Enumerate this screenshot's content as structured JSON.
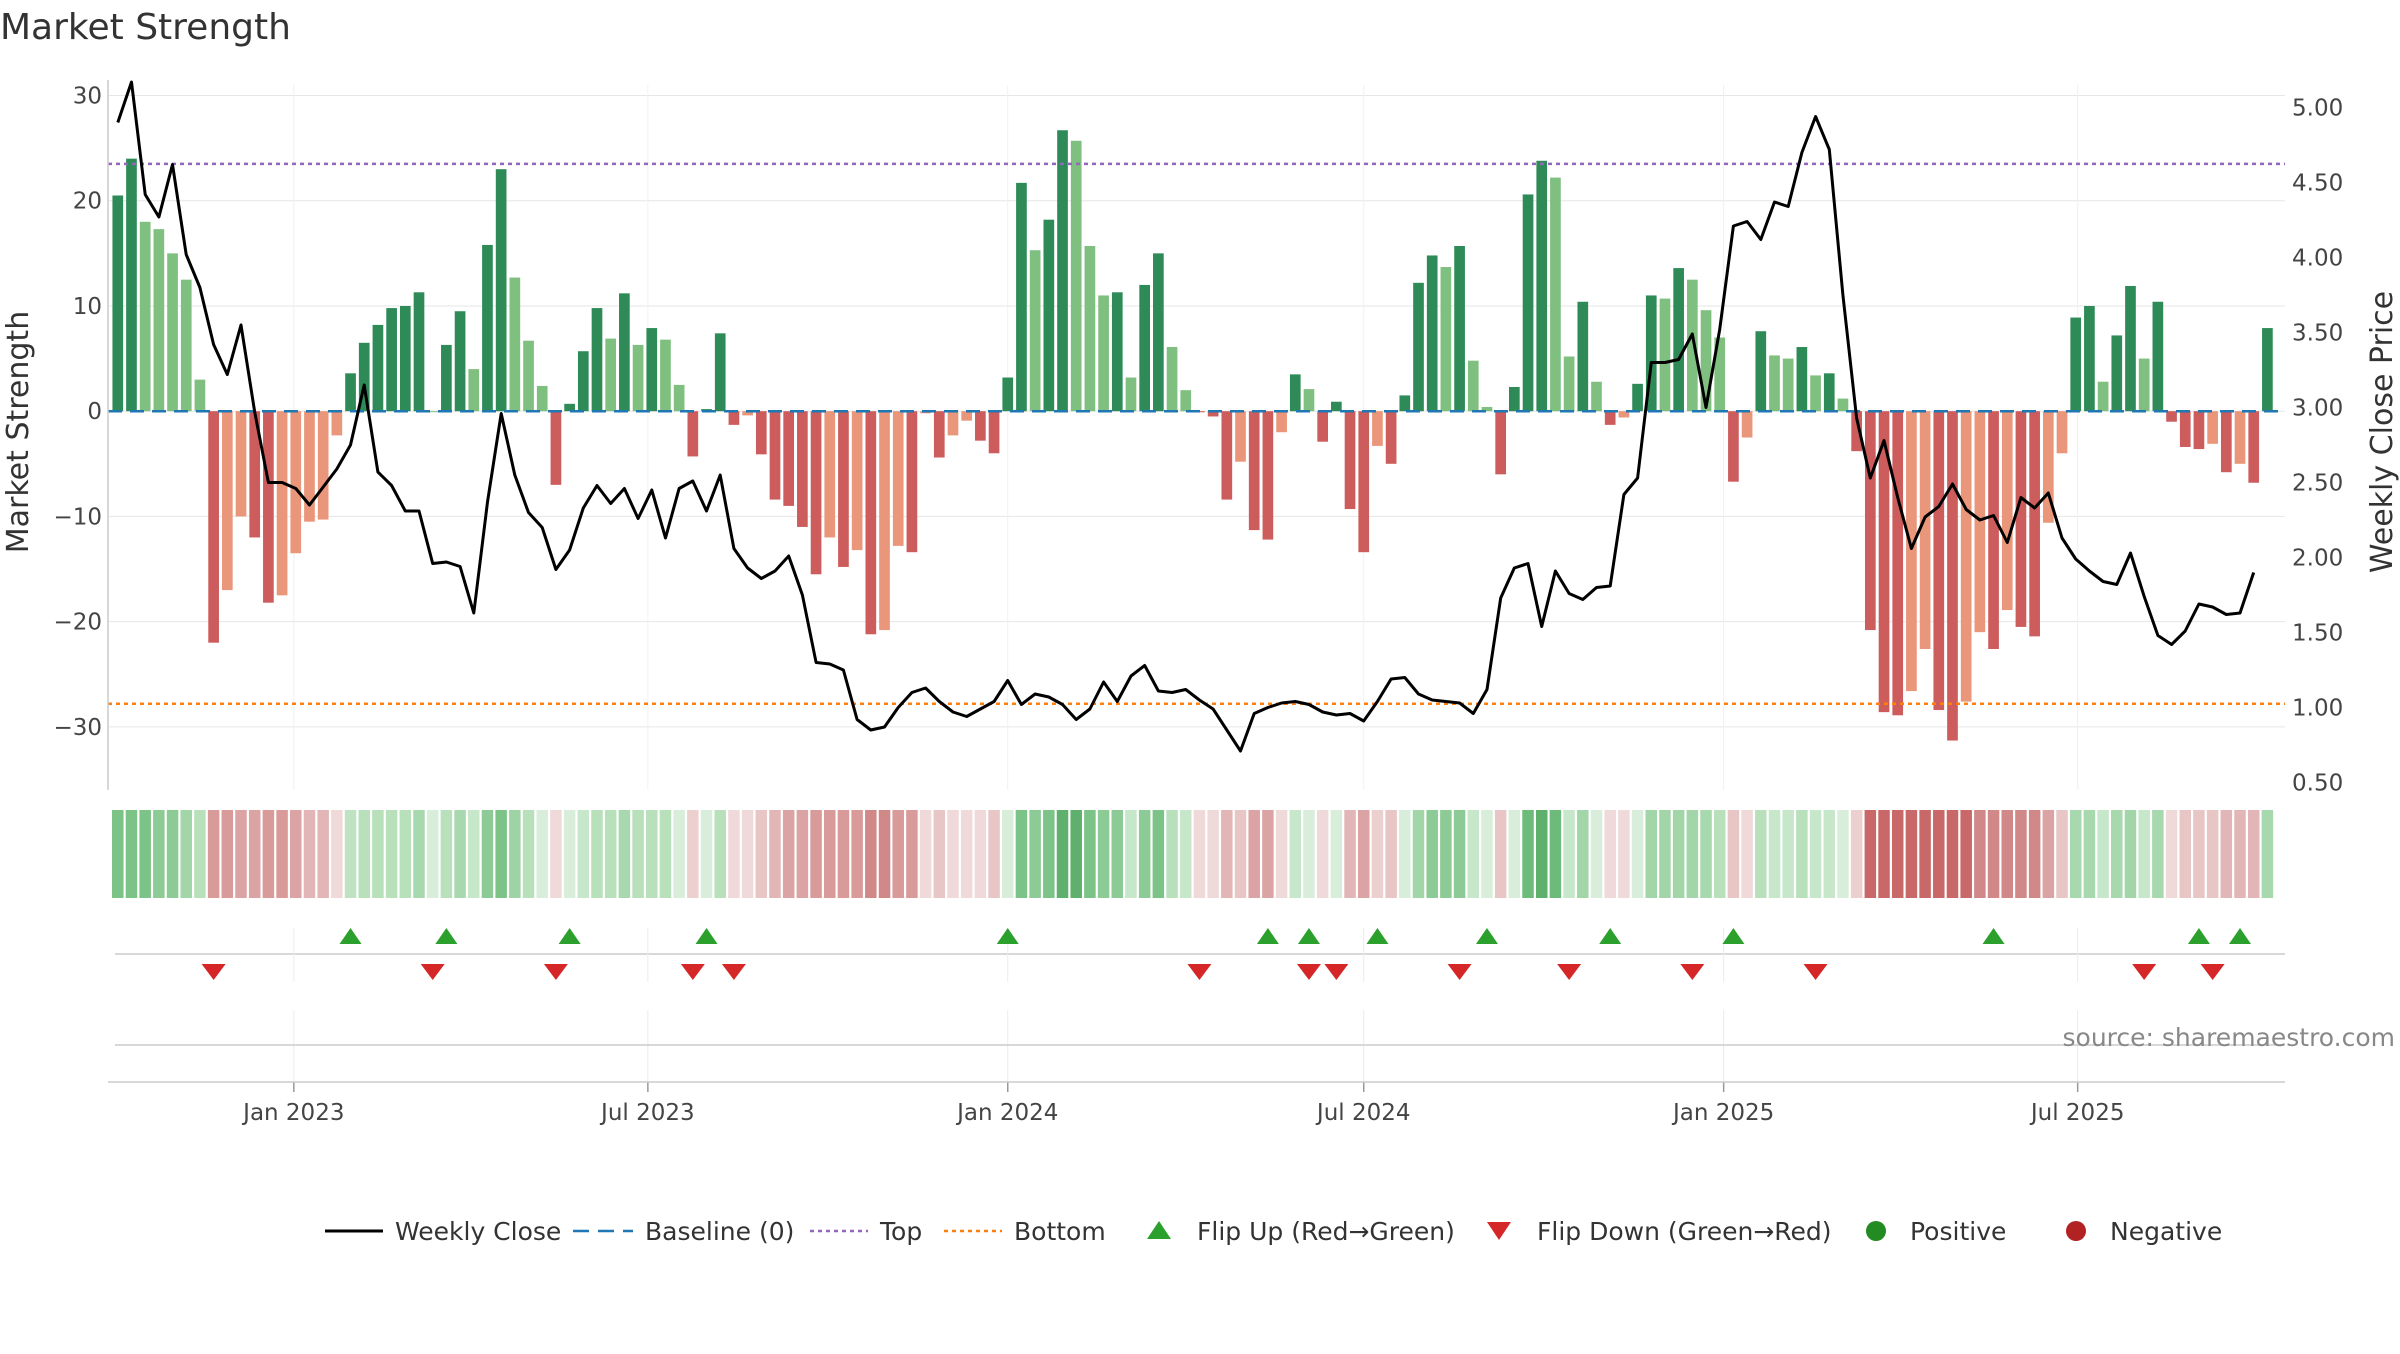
{
  "title": "Market Strength",
  "source": "source: sharemaestro.com",
  "chart_data": {
    "type": "bar",
    "title": "Market Strength",
    "ylabel_left": "Market Strength",
    "ylabel_right": "Weekly Close Price",
    "ylim_left": [
      -36,
      31
    ],
    "ylim_right": [
      0.45,
      5.15
    ],
    "yticks_left": [
      30,
      20,
      10,
      0,
      -10,
      -20,
      -30
    ],
    "ytick_labels_left": [
      "30",
      "20",
      "10",
      "0",
      "−10",
      "−20",
      "−30"
    ],
    "yticks_right": [
      5.0,
      4.5,
      4.0,
      3.5,
      3.0,
      2.5,
      2.0,
      1.5,
      1.0,
      0.5
    ],
    "ytick_labels_right": [
      "5.00",
      "4.50",
      "4.00",
      "3.50",
      "3.00",
      "2.50",
      "2.00",
      "1.50",
      "1.00",
      "0.50"
    ],
    "x_start_date": "2022-10-03",
    "week_days": 7,
    "x_range_dates": [
      "2022-09-28",
      "2025-10-15"
    ],
    "xticks": [
      {
        "label": "Jan 2023",
        "date": "2023-01-01"
      },
      {
        "label": "Jul 2023",
        "date": "2023-07-01"
      },
      {
        "label": "Jan 2024",
        "date": "2024-01-01"
      },
      {
        "label": "Jul 2024",
        "date": "2024-07-01"
      },
      {
        "label": "Jan 2025",
        "date": "2025-01-01"
      },
      {
        "label": "Jul 2025",
        "date": "2025-07-01"
      }
    ],
    "top_line": 23.5,
    "bottom_line": -27.8,
    "grid": true,
    "legend_position": "bottom-center",
    "strength": [
      20.5,
      24,
      18,
      17.3,
      15,
      12.5,
      3,
      -22,
      -17,
      -10,
      -12,
      -18.2,
      -17.5,
      -13.5,
      -10.5,
      -10.3,
      -2.3,
      3.6,
      6.5,
      8.2,
      9.8,
      10,
      11.3,
      0,
      6.3,
      9.5,
      4,
      15.8,
      23,
      12.7,
      6.7,
      2.4,
      -7,
      0.7,
      5.7,
      9.8,
      6.9,
      11.2,
      6.3,
      7.9,
      6.8,
      2.5,
      -4.3,
      0.2,
      7.4,
      -1.3,
      -0.4,
      -4.1,
      -8.4,
      -9,
      -11,
      -15.5,
      -12,
      -14.8,
      -13.2,
      -21.2,
      -20.8,
      -12.8,
      -13.4,
      -0.2,
      -4.4,
      -2.3,
      -0.9,
      -2.8,
      -4,
      3.2,
      21.7,
      15.3,
      18.2,
      26.7,
      25.7,
      15.7,
      11,
      11.3,
      3.2,
      12,
      15,
      6.1,
      2,
      -0.1,
      -0.5,
      -8.4,
      -4.8,
      -11.3,
      -12.2,
      -2,
      3.5,
      2.1,
      -2.9,
      0.9,
      -9.3,
      -13.4,
      -3.3,
      -5,
      1.5,
      12.2,
      14.8,
      13.7,
      15.7,
      4.8,
      0.4,
      -6,
      2.3,
      20.6,
      23.8,
      22.2,
      5.2,
      10.4,
      2.8,
      -1.3,
      -0.6,
      2.6,
      11,
      10.7,
      13.6,
      12.5,
      9.6,
      7,
      -6.7,
      -2.5,
      7.6,
      5.3,
      5,
      6.1,
      3.4,
      3.6,
      1.2,
      -3.8,
      -20.8,
      -28.6,
      -28.9,
      -26.6,
      -22.6,
      -28.4,
      -31.3,
      -27.6,
      -21,
      -22.6,
      -18.9,
      -20.5,
      -21.4,
      -10.6,
      -4,
      8.9,
      10,
      2.8,
      7.2,
      11.9,
      5,
      10.4,
      -1,
      -3.4,
      -3.6,
      -3.1,
      -5.8,
      -5,
      -6.8,
      7.9
    ],
    "close": [
      4.9,
      5.17,
      4.42,
      4.27,
      4.62,
      4.02,
      3.8,
      3.42,
      3.22,
      3.55,
      2.97,
      2.5,
      2.5,
      2.46,
      2.35,
      2.47,
      2.59,
      2.75,
      3.15,
      2.57,
      2.48,
      2.31,
      2.31,
      1.96,
      1.97,
      1.94,
      1.63,
      2.37,
      2.96,
      2.55,
      2.3,
      2.2,
      1.92,
      2.05,
      2.33,
      2.48,
      2.36,
      2.46,
      2.26,
      2.45,
      2.13,
      2.46,
      2.51,
      2.31,
      2.55,
      2.06,
      1.93,
      1.86,
      1.91,
      2.01,
      1.75,
      1.3,
      1.29,
      1.25,
      0.92,
      0.85,
      0.87,
      1.0,
      1.1,
      1.13,
      1.04,
      0.97,
      0.94,
      0.99,
      1.04,
      1.18,
      1.02,
      1.09,
      1.07,
      1.02,
      0.92,
      0.99,
      1.17,
      1.04,
      1.21,
      1.28,
      1.11,
      1.1,
      1.12,
      1.05,
      0.99,
      0.85,
      0.71,
      0.96,
      1.0,
      1.03,
      1.04,
      1.02,
      0.97,
      0.95,
      0.96,
      0.91,
      1.04,
      1.19,
      1.2,
      1.09,
      1.05,
      1.04,
      1.03,
      0.96,
      1.12,
      1.73,
      1.93,
      1.96,
      1.54,
      1.91,
      1.76,
      1.72,
      1.8,
      1.81,
      2.42,
      2.53,
      3.3,
      3.3,
      3.32,
      3.49,
      3.0,
      3.52,
      4.21,
      4.24,
      4.12,
      4.37,
      4.34,
      4.7,
      4.94,
      4.72,
      3.75,
      2.93,
      2.53,
      2.78,
      2.4,
      2.06,
      2.27,
      2.34,
      2.49,
      2.32,
      2.25,
      2.28,
      2.1,
      2.4,
      2.33,
      2.43,
      2.13,
      1.99,
      1.91,
      1.84,
      1.82,
      2.03,
      1.74,
      1.48,
      1.42,
      1.51,
      1.69,
      1.67,
      1.62,
      1.63,
      1.9
    ]
  },
  "regime_strip": {
    "colors": [
      "#7bc386",
      "#7bc386",
      "#7bc386",
      "#8ccb95",
      "#8ccb95",
      "#a2d6a9",
      "#b7e0bb",
      "#d99a9a",
      "#d99a9a",
      "#dba3a3",
      "#dba3a3",
      "#d99a9a",
      "#d99a9a",
      "#dba3a3",
      "#e2b6b6",
      "#e2b6b6",
      "#efd9d9",
      "#bfe3c2",
      "#b7e0bb",
      "#b7e0bb",
      "#b7e0bb",
      "#b7e0bb",
      "#a8d8ad",
      "#d8eedb",
      "#b7e0bb",
      "#a8d8ad",
      "#c7e7ca",
      "#8ccb95",
      "#7bc386",
      "#9ed4a5",
      "#b7e0bb",
      "#d8eedb",
      "#efd9d9",
      "#d8eedb",
      "#c7e7ca",
      "#b7e0bb",
      "#b7e0bb",
      "#a8d8ad",
      "#b7e0bb",
      "#b7e0bb",
      "#b7e0bb",
      "#d8eedb",
      "#eccfcf",
      "#d8eedb",
      "#b7e0bb",
      "#efd9d9",
      "#efd9d9",
      "#e8c6c6",
      "#e2b6b6",
      "#dba3a3",
      "#dba3a3",
      "#d99a9a",
      "#d99a9a",
      "#d99a9a",
      "#d99a9a",
      "#d08888",
      "#d08888",
      "#d99a9a",
      "#d99a9a",
      "#efd9d9",
      "#e8c6c6",
      "#efd9d9",
      "#efd9d9",
      "#efd9d9",
      "#e8c6c6",
      "#d8eedb",
      "#7bc386",
      "#8ccb95",
      "#7bc386",
      "#5fb06c",
      "#5fb06c",
      "#7bc386",
      "#8ccb95",
      "#8ccb95",
      "#c7e7ca",
      "#8ccb95",
      "#7bc386",
      "#b7e0bb",
      "#c7e7ca",
      "#efd9d9",
      "#efd9d9",
      "#e2b6b6",
      "#e8c6c6",
      "#dba3a3",
      "#dba3a3",
      "#efd9d9",
      "#c7e7ca",
      "#d8eedb",
      "#efd9d9",
      "#d8eedb",
      "#e2b6b6",
      "#dba3a3",
      "#eccfcf",
      "#e8c6c6",
      "#d8eedb",
      "#a2d6a9",
      "#8ccb95",
      "#8ccb95",
      "#8ccb95",
      "#c7e7ca",
      "#d8eedb",
      "#e8c6c6",
      "#d8eedb",
      "#6dbb7a",
      "#5fb06c",
      "#6dbb7a",
      "#c7e7ca",
      "#a2d6a9",
      "#d8eedb",
      "#efd9d9",
      "#efd9d9",
      "#d8eedb",
      "#a2d6a9",
      "#a2d6a9",
      "#a2d6a9",
      "#a2d6a9",
      "#a8d8ad",
      "#b7e0bb",
      "#e8c6c6",
      "#efd9d9",
      "#b7e0bb",
      "#c7e7ca",
      "#c7e7ca",
      "#b7e0bb",
      "#c7e7ca",
      "#c7e7ca",
      "#d8eedb",
      "#eccfcf",
      "#c86868",
      "#c86868",
      "#c86868",
      "#c86868",
      "#c86868",
      "#c86868",
      "#c86868",
      "#c86868",
      "#d08888",
      "#d08888",
      "#d08888",
      "#d08888",
      "#d08888",
      "#dba3a3",
      "#e8c6c6",
      "#a8d8ad",
      "#a8d8ad",
      "#c7e7ca",
      "#a8d8ad",
      "#a2d6a9",
      "#c7e7ca",
      "#a8d8ad",
      "#efd9d9",
      "#e8c6c6",
      "#e8c6c6",
      "#e8c6c6",
      "#e2b6b6",
      "#e2b6b6",
      "#e2b6b6",
      "#a8d8ad"
    ]
  },
  "flip_up_weeks": [
    17,
    24,
    33,
    43,
    65,
    84,
    87,
    92,
    100,
    109,
    118,
    137,
    152,
    155
  ],
  "flip_down_weeks": [
    7,
    23,
    32,
    42,
    45,
    79,
    87,
    89,
    98,
    106,
    115,
    124,
    148,
    153
  ],
  "colors": {
    "strong_green": "#2e8b57",
    "light_green": "#7fbf7f",
    "strong_red": "#cd5c5c",
    "light_red": "#e9967a",
    "close_line": "#000000",
    "baseline": "#1f77b4",
    "top": "#9467bd",
    "bottom": "#ff7f0e",
    "flip_up": "#2ca02c",
    "flip_down": "#d62728",
    "positive": "#228b22",
    "negative": "#b22222",
    "grid": "#e6e6e6",
    "axis": "#cccccc"
  },
  "legend": [
    {
      "label": "Weekly Close",
      "icon": "solid-line"
    },
    {
      "label": "Baseline (0)",
      "icon": "dashed-line"
    },
    {
      "label": "Top",
      "icon": "dotted-line"
    },
    {
      "label": "Bottom",
      "icon": "dotted-line"
    },
    {
      "label": "Flip Up (Red→Green)",
      "icon": "triangle-up"
    },
    {
      "label": "Flip Down (Green→Red)",
      "icon": "triangle-down"
    },
    {
      "label": "Positive",
      "icon": "circle"
    },
    {
      "label": "Negative",
      "icon": "circle"
    }
  ]
}
